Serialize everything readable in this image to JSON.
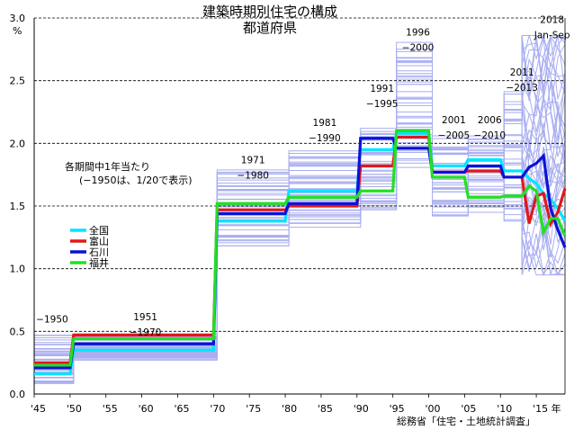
{
  "chart_data": {
    "type": "line",
    "title": "建築時期別住宅の構成",
    "subtitle": "都道府県",
    "ylabel": "%",
    "ylim": [
      0,
      3.0
    ],
    "yticks": [
      "0.0",
      "0.5",
      "1.0",
      "1.5",
      "2.0",
      "2.5",
      "3.0"
    ],
    "xlim": [
      1945,
      2019
    ],
    "xticks": [
      {
        "x": 1945,
        "label": "'45"
      },
      {
        "x": 1950,
        "label": "'50"
      },
      {
        "x": 1955,
        "label": "'55"
      },
      {
        "x": 1960,
        "label": "'60"
      },
      {
        "x": 1965,
        "label": "'65"
      },
      {
        "x": 1970,
        "label": "'70"
      },
      {
        "x": 1975,
        "label": "'75"
      },
      {
        "x": 1980,
        "label": "'80"
      },
      {
        "x": 1985,
        "label": "'85"
      },
      {
        "x": 1990,
        "label": "'90"
      },
      {
        "x": 1995,
        "label": "'95"
      },
      {
        "x": 2000,
        "label": "'00"
      },
      {
        "x": 2005,
        "label": "'05"
      },
      {
        "x": 2010,
        "label": "'10"
      },
      {
        "x": 2015,
        "label": "'15 年"
      }
    ],
    "grid": "dashed horizontal",
    "note": [
      "各期間中1年当たり",
      "(−1950は、1/20で表示)"
    ],
    "source": "総務省「住宅・土地統計調査」",
    "period_labels": [
      {
        "x": 1947.5,
        "y": 0.57,
        "lines": [
          "−1950"
        ]
      },
      {
        "x": 1960.5,
        "y": 0.59,
        "lines": [
          "1951",
          "−1970"
        ]
      },
      {
        "x": 1975.5,
        "y": 1.84,
        "lines": [
          "1971",
          "−1980"
        ]
      },
      {
        "x": 1985.5,
        "y": 2.14,
        "lines": [
          "1981",
          "−1990"
        ]
      },
      {
        "x": 1993.5,
        "y": 2.41,
        "lines": [
          "1991",
          "−1995"
        ]
      },
      {
        "x": 1998.5,
        "y": 2.86,
        "lines": [
          "1996",
          "−2000"
        ]
      },
      {
        "x": 2003.5,
        "y": 2.16,
        "lines": [
          "2001",
          "−2005"
        ]
      },
      {
        "x": 2008.5,
        "y": 2.16,
        "lines": [
          "2006",
          "−2010"
        ]
      },
      {
        "x": 2013.0,
        "y": 2.54,
        "lines": [
          "2011",
          "−2013"
        ]
      },
      {
        "x": 2017.2,
        "y": 2.96,
        "lines": [
          "2018",
          "Jan-Sep"
        ]
      }
    ],
    "x": [
      1945,
      1950,
      1950.5,
      1970,
      1970.5,
      1980,
      1980.5,
      1990,
      1990.5,
      1995,
      1995.5,
      2000,
      2000.5,
      2005,
      2005.5,
      2010,
      2010.5,
      2013,
      2014,
      2015,
      2016,
      2017,
      2018,
      2019
    ],
    "series": [
      {
        "name": "全国",
        "color": "#00e5ff",
        "width": 3.2,
        "values": [
          0.16,
          0.16,
          0.35,
          0.35,
          1.38,
          1.38,
          1.62,
          1.62,
          1.95,
          1.95,
          2.08,
          2.08,
          1.82,
          1.82,
          1.87,
          1.87,
          1.78,
          1.78,
          1.72,
          1.68,
          1.6,
          1.55,
          1.48,
          1.38
        ]
      },
      {
        "name": "富山",
        "color": "#e0181b",
        "width": 3.2,
        "values": [
          0.25,
          0.25,
          0.47,
          0.47,
          1.47,
          1.47,
          1.5,
          1.5,
          1.82,
          1.82,
          2.05,
          2.05,
          1.77,
          1.77,
          1.78,
          1.78,
          1.73,
          1.73,
          1.36,
          1.58,
          1.6,
          1.36,
          1.45,
          1.64
        ]
      },
      {
        "name": "石川",
        "color": "#0a12d8",
        "width": 3.2,
        "values": [
          0.21,
          0.21,
          0.4,
          0.4,
          1.44,
          1.44,
          1.52,
          1.52,
          2.04,
          2.04,
          1.96,
          1.96,
          1.77,
          1.77,
          1.82,
          1.82,
          1.73,
          1.73,
          1.81,
          1.84,
          1.9,
          1.48,
          1.31,
          1.17
        ]
      },
      {
        "name": "福井",
        "color": "#22e022",
        "width": 3.2,
        "values": [
          0.23,
          0.23,
          0.44,
          0.44,
          1.52,
          1.52,
          1.57,
          1.57,
          1.62,
          1.62,
          2.1,
          2.1,
          1.73,
          1.73,
          1.57,
          1.57,
          1.58,
          1.58,
          1.66,
          1.62,
          1.29,
          1.4,
          1.4,
          1.26
        ]
      }
    ],
    "prefecture_bands": [
      {
        "min": 0.07,
        "max": 0.47,
        "y": [
          1945,
          1950.5
        ]
      },
      {
        "min": 0.27,
        "max": 0.48,
        "y": [
          1950.5,
          1970.5
        ]
      },
      {
        "min": 1.16,
        "max": 1.8,
        "y": [
          1970.5,
          1980.5
        ]
      },
      {
        "min": 1.33,
        "max": 1.94,
        "y": [
          1980.5,
          1990.5
        ]
      },
      {
        "min": 1.45,
        "max": 2.12,
        "y": [
          1990.5,
          1995.5
        ]
      },
      {
        "min": 1.8,
        "max": 2.81,
        "y": [
          1995.5,
          2000.5
        ]
      },
      {
        "min": 1.42,
        "max": 2.06,
        "y": [
          2000.5,
          2005.5
        ]
      },
      {
        "min": 1.45,
        "max": 2.06,
        "y": [
          2005.5,
          2010.5
        ]
      },
      {
        "min": 1.38,
        "max": 2.42,
        "y": [
          2010.5,
          2013
        ]
      },
      {
        "min": 0.95,
        "max": 2.86,
        "y": [
          2013,
          2019
        ]
      }
    ]
  }
}
